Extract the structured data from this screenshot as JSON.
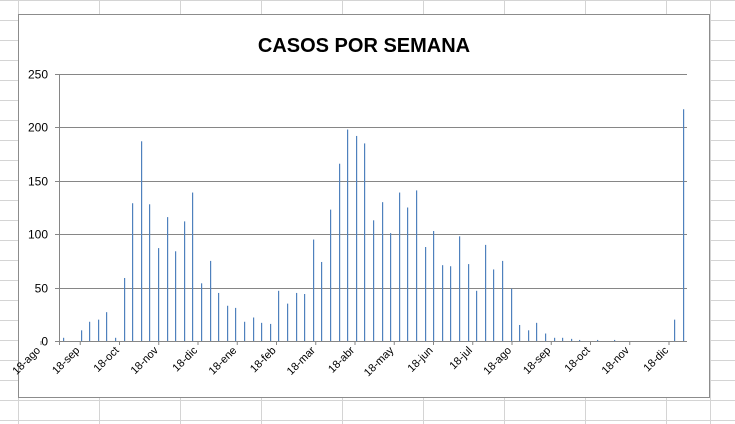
{
  "colors": {
    "bar": "#4f81bd",
    "gridline": "#868686",
    "axis": "#868686",
    "sheet_grid": "#d4d4d4",
    "background": "#ffffff"
  },
  "chart_data": {
    "type": "bar",
    "title": "CASOS POR SEMANA",
    "xlabel": "",
    "ylabel": "",
    "ylim": [
      0,
      250
    ],
    "yticks": [
      0,
      50,
      100,
      150,
      200,
      250
    ],
    "grid": true,
    "legend": "none",
    "tick_labels": [
      "18-ago",
      "18-sep",
      "18-oct",
      "18-nov",
      "18-dic",
      "18-ene",
      "18-feb",
      "18-mar",
      "18-abr",
      "18-may",
      "18-jun",
      "18-jul",
      "18-ago",
      "18-sep",
      "18-oct",
      "18-nov",
      "18-dic"
    ],
    "values": [
      3,
      0,
      10,
      18,
      20,
      27,
      3,
      59,
      129,
      187,
      128,
      87,
      116,
      84,
      112,
      139,
      54,
      75,
      45,
      33,
      31,
      18,
      22,
      17,
      16,
      47,
      35,
      45,
      44,
      95,
      74,
      123,
      166,
      198,
      192,
      185,
      113,
      130,
      101,
      139,
      125,
      141,
      88,
      103,
      71,
      70,
      98,
      72,
      47,
      90,
      67,
      75,
      49,
      15,
      10,
      17,
      7,
      3,
      3,
      2,
      1,
      0,
      1,
      0,
      1,
      0,
      0,
      0,
      0,
      0,
      0,
      20,
      217
    ]
  }
}
